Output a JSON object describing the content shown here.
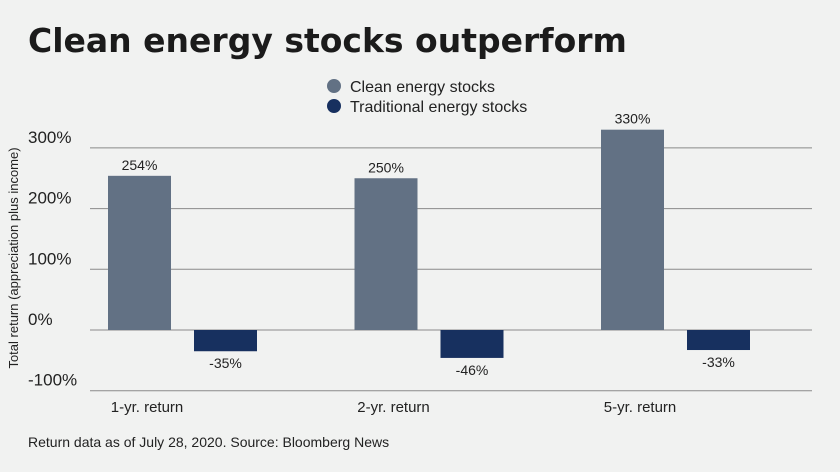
{
  "chart_data": {
    "type": "bar",
    "title": "Clean energy stocks outperform",
    "ylabel": "Total return (appreciation plus income)",
    "xlabel": "",
    "categories": [
      "1-yr. return",
      "2-yr. return",
      "5-yr. return"
    ],
    "series": [
      {
        "name": "Clean energy stocks",
        "values": [
          254,
          250,
          330
        ],
        "labels": [
          "254%",
          "250%",
          "330%"
        ],
        "color": "#627184"
      },
      {
        "name": "Traditional energy stocks",
        "values": [
          -35,
          -46,
          -33
        ],
        "labels": [
          "-35%",
          "-46%",
          "-33%"
        ],
        "color": "#17305f"
      }
    ],
    "yticks": [
      {
        "value": 300,
        "label": "300%"
      },
      {
        "value": 200,
        "label": "200%"
      },
      {
        "value": 100,
        "label": "100%"
      },
      {
        "value": 0,
        "label": "0%"
      },
      {
        "value": -100,
        "label": "-100%"
      }
    ],
    "ylim": [
      -100,
      300
    ],
    "grid": true,
    "legend_position": "top-center",
    "footnote": "Return data as of July 28, 2020. Source: Bloomberg News"
  }
}
